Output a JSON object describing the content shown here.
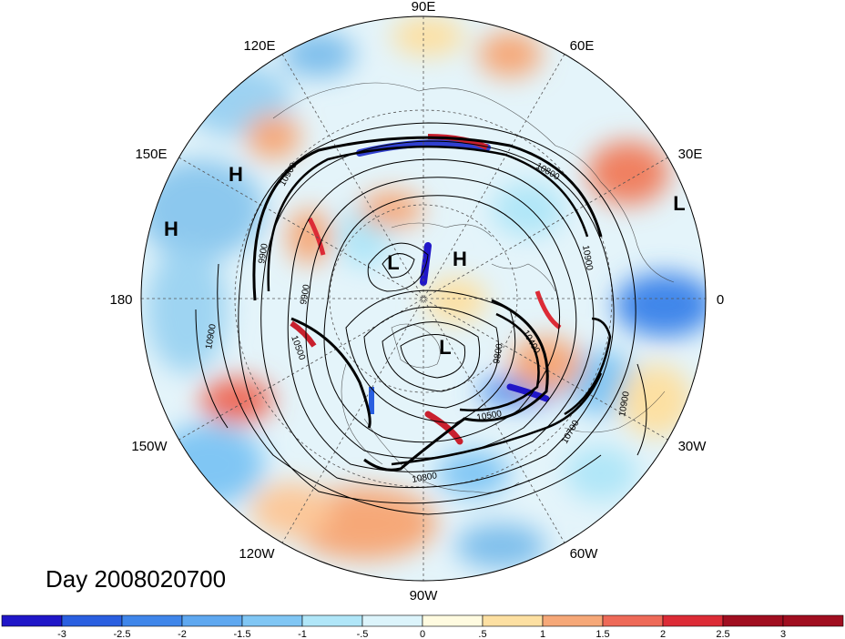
{
  "title": "Day 2008020700",
  "longitude_labels": [
    "90E",
    "60E",
    "30E",
    "0",
    "30W",
    "60W",
    "90W",
    "120W",
    "150W",
    "180",
    "150E",
    "120E"
  ],
  "pressure_centers": [
    {
      "type": "H"
    },
    {
      "type": "H"
    },
    {
      "type": "L"
    },
    {
      "type": "H"
    },
    {
      "type": "L"
    },
    {
      "type": "L"
    }
  ],
  "contour_labels": [
    "10900",
    "10800",
    "9900",
    "9800",
    "10400",
    "10900",
    "10700",
    "10500",
    "10800",
    "10500",
    "10900",
    "9900",
    "10900"
  ],
  "colorbar": {
    "ticks": [
      "-3",
      "-2.5",
      "-2",
      "-1.5",
      "-1",
      "-.5",
      "0",
      ".5",
      "1",
      "1.5",
      "2",
      "2.5",
      "3"
    ],
    "colors": [
      "#2016c8",
      "#2a5fe0",
      "#3f86ea",
      "#5fa8f0",
      "#80c6f4",
      "#b0e6f8",
      "#dcf4fb",
      "#fffbe0",
      "#fde0a2",
      "#f6a878",
      "#ee6a58",
      "#dc2b36",
      "#a00e20"
    ]
  }
}
